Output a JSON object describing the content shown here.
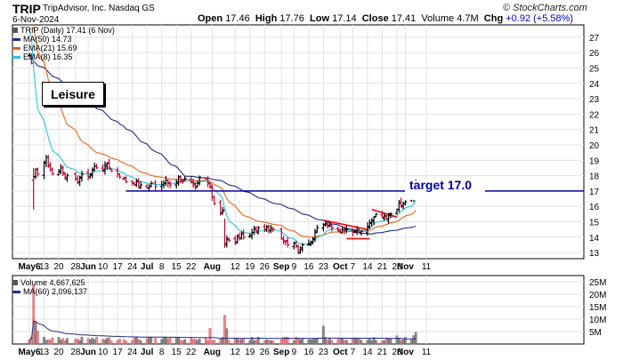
{
  "header": {
    "ticker": "TRIP",
    "company": "TripAdvisor, Inc. Nasdaq GS",
    "date": "6-Nov-2024",
    "open_label": "Open",
    "open": "17.46",
    "high_label": "High",
    "high": "17.76",
    "low_label": "Low",
    "low": "17.14",
    "close_label": "Close",
    "close": "17.41",
    "volume_label": "Volume",
    "volume": "4.7M",
    "chg_label": "Chg",
    "chg": "+0.92 (+5.58%)",
    "brand": "© StockCharts.com"
  },
  "legend": {
    "price": "TRIP (Daily) 17.41 (6 Nov)",
    "ma50": "MA(50) 14.73",
    "ema21": "EMA(21) 15.69",
    "ema8": "EMA(8) 16.35",
    "volume": "Volume 4,667,625",
    "vol_ma": "MA(60) 2,096,137"
  },
  "annotations": {
    "sector": "Leisure",
    "target": "target 17.0"
  },
  "colors": {
    "up": "#000000",
    "down": "#c0002a",
    "ma50": "#1f2d86",
    "ema21": "#e8641a",
    "ema8": "#23c8d8",
    "target_line": "#0000a0",
    "trend_lines": "#ff0000",
    "vol_up": "#8c8c8c",
    "vol_down": "#f08c8c",
    "vol_ma": "#1f2d86"
  },
  "chart_data": {
    "type": "ohlc",
    "price_axis": {
      "ticks": [
        13,
        14,
        15,
        16,
        17,
        18,
        19,
        20,
        21,
        22,
        23,
        24,
        25,
        26,
        27
      ],
      "range": [
        12.6,
        27.8
      ]
    },
    "volume_axis": {
      "ticks": [
        "5M",
        "10M",
        "15M",
        "20M",
        "25M"
      ],
      "values": [
        5,
        10,
        15,
        20,
        25
      ],
      "range": [
        0,
        27.5
      ]
    },
    "x_labels": [
      "May6",
      "13",
      "20",
      "28",
      "Jun",
      "10",
      "17",
      "24",
      "Jul",
      "8",
      "15",
      "22",
      "Aug",
      "12",
      "19",
      "26",
      "Sep",
      "9",
      "16",
      "23",
      "Oct",
      "7",
      "14",
      "21",
      "28",
      "Nov",
      "11"
    ],
    "bars": [
      {
        "d": "2024-05-06",
        "c": 25.8
      },
      {
        "d": "2024-05-07",
        "c": 25.3
      },
      {
        "d": "2024-05-08",
        "c": 17.9
      },
      {
        "d": "2024-05-09",
        "c": 18.4
      },
      {
        "d": "2024-05-10",
        "c": 18.1
      },
      {
        "d": "2024-05-13",
        "c": 18.9
      },
      {
        "d": "2024-05-14",
        "c": 19.2
      },
      {
        "d": "2024-05-15",
        "c": 18.7
      },
      {
        "d": "2024-05-16",
        "c": 18.4
      },
      {
        "d": "2024-05-17",
        "c": 18.1
      },
      {
        "d": "2024-05-20",
        "c": 18.3
      },
      {
        "d": "2024-05-21",
        "c": 18.5
      },
      {
        "d": "2024-05-22",
        "c": 18.2
      },
      {
        "d": "2024-05-23",
        "c": 17.9
      },
      {
        "d": "2024-05-24",
        "c": 18.0
      },
      {
        "d": "2024-05-28",
        "c": 17.8
      },
      {
        "d": "2024-05-29",
        "c": 17.6
      },
      {
        "d": "2024-05-30",
        "c": 17.9
      },
      {
        "d": "2024-05-31",
        "c": 18.1
      },
      {
        "d": "2024-06-03",
        "c": 17.9
      },
      {
        "d": "2024-06-04",
        "c": 18.1
      },
      {
        "d": "2024-06-05",
        "c": 18.4
      },
      {
        "d": "2024-06-06",
        "c": 18.6
      },
      {
        "d": "2024-06-07",
        "c": 18.5
      },
      {
        "d": "2024-06-10",
        "c": 18.4
      },
      {
        "d": "2024-06-11",
        "c": 18.7
      },
      {
        "d": "2024-06-12",
        "c": 18.8
      },
      {
        "d": "2024-06-13",
        "c": 18.5
      },
      {
        "d": "2024-06-14",
        "c": 18.3
      },
      {
        "d": "2024-06-17",
        "c": 18.1
      },
      {
        "d": "2024-06-18",
        "c": 17.9
      },
      {
        "d": "2024-06-20",
        "c": 17.8
      },
      {
        "d": "2024-06-21",
        "c": 17.6
      },
      {
        "d": "2024-06-24",
        "c": 17.5
      },
      {
        "d": "2024-06-25",
        "c": 17.4
      },
      {
        "d": "2024-06-26",
        "c": 17.6
      },
      {
        "d": "2024-06-27",
        "c": 17.3
      },
      {
        "d": "2024-06-28",
        "c": 17.4
      },
      {
        "d": "2024-07-01",
        "c": 17.2
      },
      {
        "d": "2024-07-02",
        "c": 17.3
      },
      {
        "d": "2024-07-03",
        "c": 17.5
      },
      {
        "d": "2024-07-05",
        "c": 17.3
      },
      {
        "d": "2024-07-08",
        "c": 17.4
      },
      {
        "d": "2024-07-09",
        "c": 17.5
      },
      {
        "d": "2024-07-10",
        "c": 17.7
      },
      {
        "d": "2024-07-11",
        "c": 17.5
      },
      {
        "d": "2024-07-12",
        "c": 17.4
      },
      {
        "d": "2024-07-15",
        "c": 17.6
      },
      {
        "d": "2024-07-16",
        "c": 17.9
      },
      {
        "d": "2024-07-17",
        "c": 17.7
      },
      {
        "d": "2024-07-18",
        "c": 17.6
      },
      {
        "d": "2024-07-19",
        "c": 17.8
      },
      {
        "d": "2024-07-22",
        "c": 17.6
      },
      {
        "d": "2024-07-23",
        "c": 17.4
      },
      {
        "d": "2024-07-24",
        "c": 17.2
      },
      {
        "d": "2024-07-25",
        "c": 17.5
      },
      {
        "d": "2024-07-26",
        "c": 17.9
      },
      {
        "d": "2024-07-29",
        "c": 17.8
      },
      {
        "d": "2024-07-30",
        "c": 17.5
      },
      {
        "d": "2024-07-31",
        "c": 17.3
      },
      {
        "d": "2024-08-01",
        "c": 16.6
      },
      {
        "d": "2024-08-02",
        "c": 16.2
      },
      {
        "d": "2024-08-05",
        "c": 15.5
      },
      {
        "d": "2024-08-06",
        "c": 15.7
      },
      {
        "d": "2024-08-07",
        "c": 13.6
      },
      {
        "d": "2024-08-08",
        "c": 13.9
      },
      {
        "d": "2024-08-09",
        "c": 13.8
      },
      {
        "d": "2024-08-12",
        "c": 13.7
      },
      {
        "d": "2024-08-13",
        "c": 14.0
      },
      {
        "d": "2024-08-14",
        "c": 13.9
      },
      {
        "d": "2024-08-15",
        "c": 14.2
      },
      {
        "d": "2024-08-16",
        "c": 14.0
      },
      {
        "d": "2024-08-19",
        "c": 14.1
      },
      {
        "d": "2024-08-20",
        "c": 14.3
      },
      {
        "d": "2024-08-21",
        "c": 14.5
      },
      {
        "d": "2024-08-22",
        "c": 14.4
      },
      {
        "d": "2024-08-23",
        "c": 14.6
      },
      {
        "d": "2024-08-26",
        "c": 14.5
      },
      {
        "d": "2024-08-27",
        "c": 14.7
      },
      {
        "d": "2024-08-28",
        "c": 14.4
      },
      {
        "d": "2024-08-29",
        "c": 14.6
      },
      {
        "d": "2024-08-30",
        "c": 14.5
      },
      {
        "d": "2024-09-03",
        "c": 13.9
      },
      {
        "d": "2024-09-04",
        "c": 13.8
      },
      {
        "d": "2024-09-05",
        "c": 13.7
      },
      {
        "d": "2024-09-06",
        "c": 13.5
      },
      {
        "d": "2024-09-09",
        "c": 13.6
      },
      {
        "d": "2024-09-10",
        "c": 13.4
      },
      {
        "d": "2024-09-11",
        "c": 13.1
      },
      {
        "d": "2024-09-12",
        "c": 13.3
      },
      {
        "d": "2024-09-13",
        "c": 13.5
      },
      {
        "d": "2024-09-16",
        "c": 13.6
      },
      {
        "d": "2024-09-17",
        "c": 13.7
      },
      {
        "d": "2024-09-18",
        "c": 13.9
      },
      {
        "d": "2024-09-19",
        "c": 14.3
      },
      {
        "d": "2024-09-20",
        "c": 14.6
      },
      {
        "d": "2024-09-23",
        "c": 14.8
      },
      {
        "d": "2024-09-24",
        "c": 14.9
      },
      {
        "d": "2024-09-25",
        "c": 14.7
      },
      {
        "d": "2024-09-26",
        "c": 14.8
      },
      {
        "d": "2024-09-27",
        "c": 14.6
      },
      {
        "d": "2024-09-30",
        "c": 14.4
      },
      {
        "d": "2024-10-01",
        "c": 14.3
      },
      {
        "d": "2024-10-02",
        "c": 14.5
      },
      {
        "d": "2024-10-03",
        "c": 14.4
      },
      {
        "d": "2024-10-04",
        "c": 14.5
      },
      {
        "d": "2024-10-07",
        "c": 14.3
      },
      {
        "d": "2024-10-08",
        "c": 14.4
      },
      {
        "d": "2024-10-09",
        "c": 14.5
      },
      {
        "d": "2024-10-10",
        "c": 14.3
      },
      {
        "d": "2024-10-11",
        "c": 14.4
      },
      {
        "d": "2024-10-14",
        "c": 14.7
      },
      {
        "d": "2024-10-15",
        "c": 14.9
      },
      {
        "d": "2024-10-16",
        "c": 15.1
      },
      {
        "d": "2024-10-17",
        "c": 15.3
      },
      {
        "d": "2024-10-18",
        "c": 15.5
      },
      {
        "d": "2024-10-21",
        "c": 15.3
      },
      {
        "d": "2024-10-22",
        "c": 15.4
      },
      {
        "d": "2024-10-23",
        "c": 15.2
      },
      {
        "d": "2024-10-24",
        "c": 15.4
      },
      {
        "d": "2024-10-25",
        "c": 15.5
      },
      {
        "d": "2024-10-28",
        "c": 15.8
      },
      {
        "d": "2024-10-29",
        "c": 16.2
      },
      {
        "d": "2024-10-30",
        "c": 16.0
      },
      {
        "d": "2024-10-31",
        "c": 16.2
      },
      {
        "d": "2024-11-01",
        "c": 16.3
      },
      {
        "d": "2024-11-04",
        "c": 16.5
      },
      {
        "d": "2024-11-05",
        "c": 16.5
      },
      {
        "d": "2024-11-06",
        "c": 17.41
      }
    ],
    "target_level": 17.0
  }
}
